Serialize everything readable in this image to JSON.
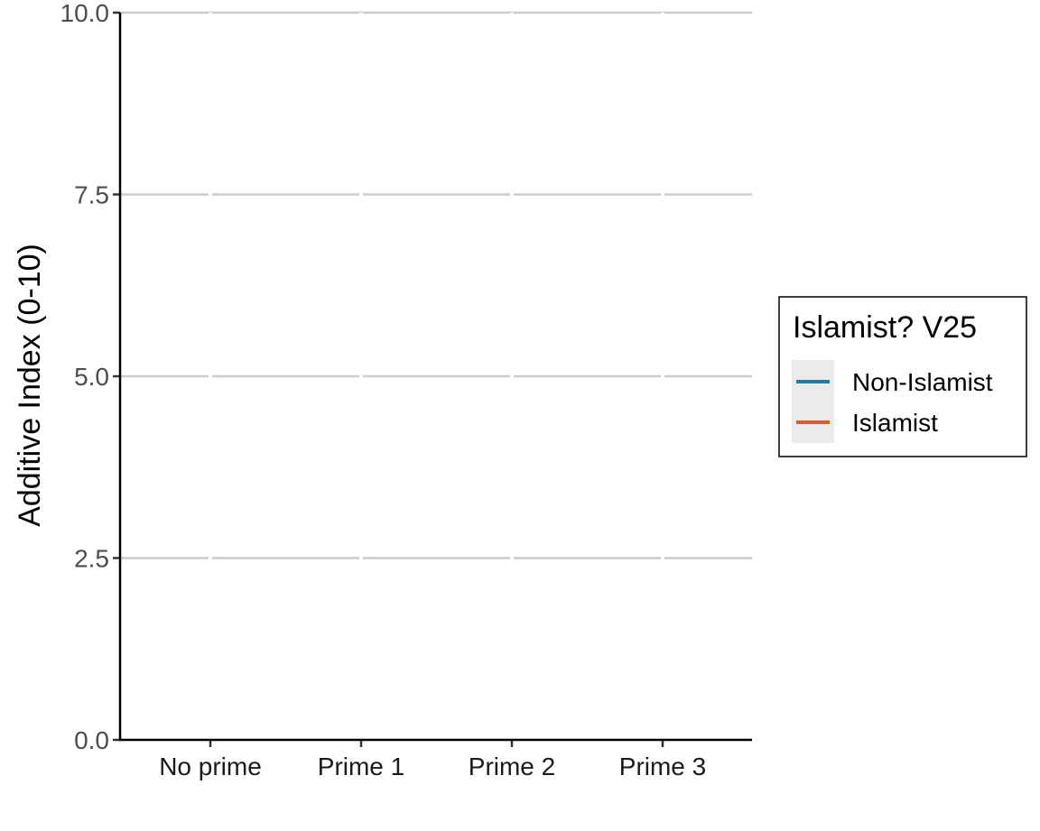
{
  "chart_data": {
    "type": "line",
    "categories": [
      "No prime",
      "Prime 1",
      "Prime 2",
      "Prime 3"
    ],
    "ylabel": "Additive Index (0-10)",
    "xlabel": "",
    "ylim": [
      0,
      10
    ],
    "yticks": [
      "0.0",
      "2.5",
      "5.0",
      "7.5",
      "10.0"
    ],
    "ytick_values": [
      0,
      2.5,
      5,
      7.5,
      10
    ],
    "grid": "horizontal",
    "legend": {
      "title": "Islamist? V25",
      "placement": "right",
      "entries": [
        {
          "label": "Non-Islamist",
          "color": "#1c7fa6"
        },
        {
          "label": "Islamist",
          "color": "#e8591d"
        }
      ]
    },
    "series": []
  }
}
